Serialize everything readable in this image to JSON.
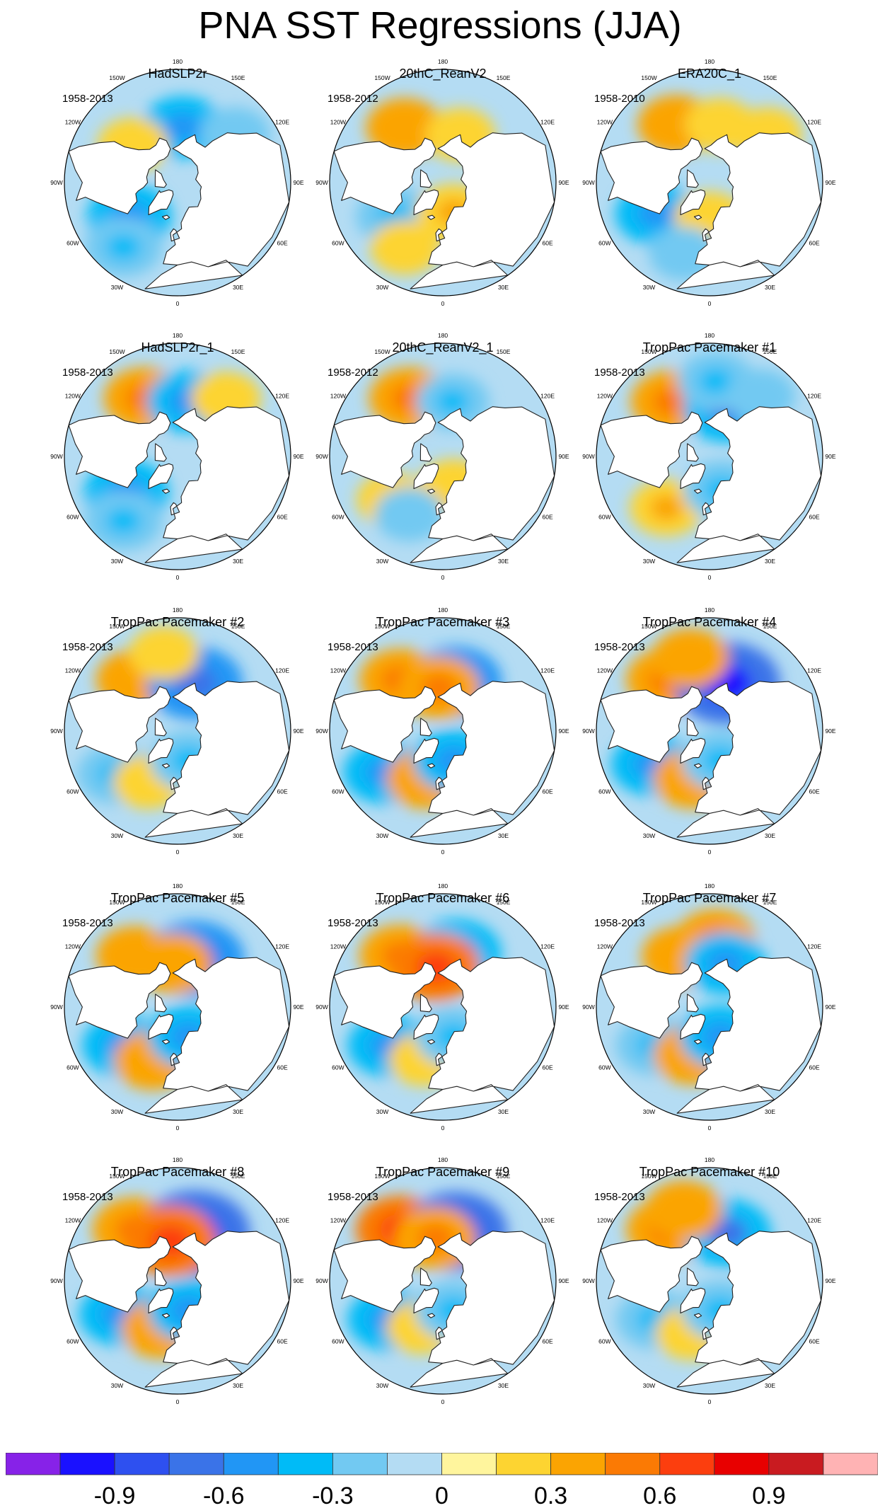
{
  "title": "PNA SST Regressions (JJA)",
  "lon_labels": {
    "top": "180",
    "top_right": "150E",
    "upper_right": "120E",
    "right": "90E",
    "lower_right": "60E",
    "bottom_right": "30E",
    "bottom": "0",
    "bottom_left": "30W",
    "lower_left": "60W",
    "left": "90W",
    "upper_left": "120W",
    "top_left": "150W"
  },
  "colors": {
    "land": "#ffffff",
    "coast": "#222222",
    "ocean_default": "#b4dcf3"
  },
  "chart_data": {
    "type": "heatmap",
    "projection": "north-polar-stereographic",
    "title": "PNA SST Regressions (JJA)",
    "panels": [
      {
        "name": "HadSLP2r",
        "period": "1958-2013",
        "anomalies": [
          {
            "lon": 175,
            "lat": 52,
            "v": -0.35
          },
          {
            "lon": -130,
            "lat": 50,
            "v": 0.2
          },
          {
            "lon": -55,
            "lat": 50,
            "v": -0.4
          },
          {
            "lon": -40,
            "lat": 35,
            "v": -0.3
          },
          {
            "lon": 130,
            "lat": 40,
            "v": -0.2
          }
        ]
      },
      {
        "name": "20thC_ReanV2",
        "period": "1958-2012",
        "anomalies": [
          {
            "lon": -145,
            "lat": 45,
            "v": 0.3
          },
          {
            "lon": 160,
            "lat": 55,
            "v": 0.2
          },
          {
            "lon": -55,
            "lat": 50,
            "v": -0.3
          },
          {
            "lon": 20,
            "lat": 68,
            "v": 0.25
          },
          {
            "lon": -30,
            "lat": 40,
            "v": 0.2
          }
        ]
      },
      {
        "name": "ERA20C_1",
        "period": "1958-2010",
        "anomalies": [
          {
            "lon": -150,
            "lat": 45,
            "v": 0.3
          },
          {
            "lon": 170,
            "lat": 50,
            "v": 0.2
          },
          {
            "lon": -60,
            "lat": 48,
            "v": -0.35
          },
          {
            "lon": 0,
            "lat": 65,
            "v": 0.2
          },
          {
            "lon": -20,
            "lat": 40,
            "v": -0.2
          },
          {
            "lon": 130,
            "lat": 40,
            "v": 0.2
          }
        ]
      },
      {
        "name": "HadSLP2r_1",
        "period": "1958-2013",
        "anomalies": [
          {
            "lon": -150,
            "lat": 45,
            "v": 0.35
          },
          {
            "lon": 170,
            "lat": 52,
            "v": -0.35
          },
          {
            "lon": -55,
            "lat": 48,
            "v": -0.4
          },
          {
            "lon": -40,
            "lat": 35,
            "v": -0.3
          },
          {
            "lon": 140,
            "lat": 40,
            "v": 0.2
          }
        ]
      },
      {
        "name": "20thC_ReanV2_1",
        "period": "1958-2012",
        "anomalies": [
          {
            "lon": -150,
            "lat": 45,
            "v": 0.35
          },
          {
            "lon": 170,
            "lat": 52,
            "v": -0.25
          },
          {
            "lon": -50,
            "lat": 45,
            "v": 0.2
          },
          {
            "lon": 20,
            "lat": 68,
            "v": 0.2
          },
          {
            "lon": -30,
            "lat": 45,
            "v": -0.2
          }
        ]
      },
      {
        "name": "TropPac Pacemaker #1",
        "period": "1958-2013",
        "anomalies": [
          {
            "lon": -145,
            "lat": 45,
            "v": 0.35
          },
          {
            "lon": 160,
            "lat": 55,
            "v": -0.45
          },
          {
            "lon": 175,
            "lat": 40,
            "v": -0.3
          },
          {
            "lon": -40,
            "lat": 45,
            "v": 0.25
          },
          {
            "lon": 20,
            "lat": 65,
            "v": -0.3
          },
          {
            "lon": 140,
            "lat": 38,
            "v": -0.2
          }
        ]
      },
      {
        "name": "TropPac Pacemaker #2",
        "period": "1958-2013",
        "anomalies": [
          {
            "lon": -140,
            "lat": 45,
            "v": 0.3
          },
          {
            "lon": 160,
            "lat": 55,
            "v": -0.55
          },
          {
            "lon": -170,
            "lat": 38,
            "v": 0.2
          },
          {
            "lon": -55,
            "lat": 40,
            "v": -0.3
          },
          {
            "lon": -30,
            "lat": 50,
            "v": 0.2
          },
          {
            "lon": 20,
            "lat": 68,
            "v": -0.3
          }
        ]
      },
      {
        "name": "TropPac Pacemaker #3",
        "period": "1958-2013",
        "anomalies": [
          {
            "lon": -140,
            "lat": 45,
            "v": 0.35
          },
          {
            "lon": 165,
            "lat": 55,
            "v": -0.5
          },
          {
            "lon": -175,
            "lat": 60,
            "v": 0.35
          },
          {
            "lon": -55,
            "lat": 42,
            "v": -0.35
          },
          {
            "lon": -20,
            "lat": 55,
            "v": 0.3
          },
          {
            "lon": 20,
            "lat": 68,
            "v": -0.35
          }
        ]
      },
      {
        "name": "TropPac Pacemaker #4",
        "period": "1958-2013",
        "anomalies": [
          {
            "lon": -140,
            "lat": 45,
            "v": 0.35
          },
          {
            "lon": 160,
            "lat": 55,
            "v": -0.7
          },
          {
            "lon": -165,
            "lat": 40,
            "v": 0.3
          },
          {
            "lon": -60,
            "lat": 45,
            "v": -0.35
          },
          {
            "lon": -20,
            "lat": 55,
            "v": 0.3
          },
          {
            "lon": 20,
            "lat": 68,
            "v": -0.3
          }
        ]
      },
      {
        "name": "TropPac Pacemaker #5",
        "period": "1958-2013",
        "anomalies": [
          {
            "lon": -140,
            "lat": 45,
            "v": 0.3
          },
          {
            "lon": 160,
            "lat": 55,
            "v": -0.6
          },
          {
            "lon": -55,
            "lat": 45,
            "v": -0.35
          },
          {
            "lon": -25,
            "lat": 50,
            "v": 0.3
          },
          {
            "lon": 20,
            "lat": 68,
            "v": -0.35
          },
          {
            "lon": -175,
            "lat": 60,
            "v": 0.3
          }
        ]
      },
      {
        "name": "TropPac Pacemaker #6",
        "period": "1958-2013",
        "anomalies": [
          {
            "lon": -140,
            "lat": 45,
            "v": 0.35
          },
          {
            "lon": 165,
            "lat": 52,
            "v": -0.45
          },
          {
            "lon": -170,
            "lat": 62,
            "v": 0.45
          },
          {
            "lon": -55,
            "lat": 45,
            "v": -0.35
          },
          {
            "lon": -20,
            "lat": 52,
            "v": 0.2
          },
          {
            "lon": 20,
            "lat": 68,
            "v": -0.3
          }
        ]
      },
      {
        "name": "TropPac Pacemaker #7",
        "period": "1958-2013",
        "anomalies": [
          {
            "lon": -150,
            "lat": 50,
            "v": 0.3
          },
          {
            "lon": 175,
            "lat": 45,
            "v": 0.35
          },
          {
            "lon": 160,
            "lat": 58,
            "v": -0.35
          },
          {
            "lon": -55,
            "lat": 45,
            "v": -0.3
          },
          {
            "lon": -20,
            "lat": 55,
            "v": 0.3
          },
          {
            "lon": 20,
            "lat": 68,
            "v": -0.35
          }
        ]
      },
      {
        "name": "TropPac Pacemaker #8",
        "period": "1958-2013",
        "anomalies": [
          {
            "lon": -140,
            "lat": 45,
            "v": 0.4
          },
          {
            "lon": 160,
            "lat": 55,
            "v": -0.75
          },
          {
            "lon": -170,
            "lat": 62,
            "v": 0.5
          },
          {
            "lon": -60,
            "lat": 45,
            "v": -0.35
          },
          {
            "lon": -20,
            "lat": 55,
            "v": 0.3
          },
          {
            "lon": 20,
            "lat": 68,
            "v": -0.35
          }
        ]
      },
      {
        "name": "TropPac Pacemaker #9",
        "period": "1958-2013",
        "anomalies": [
          {
            "lon": -140,
            "lat": 45,
            "v": 0.45
          },
          {
            "lon": 165,
            "lat": 55,
            "v": -0.65
          },
          {
            "lon": -170,
            "lat": 60,
            "v": 0.35
          },
          {
            "lon": -55,
            "lat": 45,
            "v": -0.35
          },
          {
            "lon": -25,
            "lat": 55,
            "v": 0.2
          },
          {
            "lon": 20,
            "lat": 68,
            "v": -0.3
          }
        ]
      },
      {
        "name": "TropPac Pacemaker #10",
        "period": "1958-2013",
        "anomalies": [
          {
            "lon": -140,
            "lat": 45,
            "v": 0.35
          },
          {
            "lon": 160,
            "lat": 55,
            "v": -0.45
          },
          {
            "lon": -160,
            "lat": 40,
            "v": 0.3
          },
          {
            "lon": -55,
            "lat": 45,
            "v": -0.3
          },
          {
            "lon": -20,
            "lat": 52,
            "v": 0.2
          },
          {
            "lon": 20,
            "lat": 68,
            "v": -0.3
          }
        ]
      }
    ],
    "colorbar": {
      "levels": [
        -1.05,
        -0.9,
        -0.75,
        -0.6,
        -0.45,
        -0.3,
        -0.15,
        0,
        0.15,
        0.3,
        0.45,
        0.6,
        0.75,
        0.9,
        1.05
      ],
      "colors": [
        "#8722e8",
        "#1a11ff",
        "#2e50f0",
        "#3a73e8",
        "#2196f5",
        "#00bbf7",
        "#72c9f2",
        "#b4dcf3",
        "#fff59d",
        "#fdd431",
        "#fba402",
        "#fb7a04",
        "#fc3e0e",
        "#e80000",
        "#c91b20",
        "#ffb3b4"
      ],
      "tick_labels": [
        "-0.9",
        "-0.6",
        "-0.3",
        "0",
        "0.3",
        "0.6",
        "0.9"
      ],
      "tick_values": [
        -0.9,
        -0.6,
        -0.3,
        0,
        0.3,
        0.6,
        0.9
      ]
    }
  }
}
